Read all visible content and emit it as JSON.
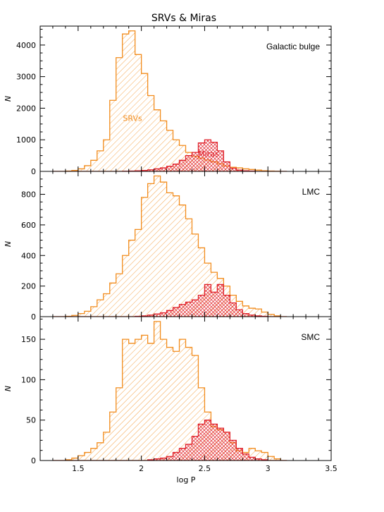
{
  "chart_data": {
    "type": "histogram",
    "title": "SRVs & Miras",
    "xlabel": "log P",
    "xlim": [
      1.2,
      3.5
    ],
    "bin_width": 0.05,
    "bins_start": 1.3,
    "x_ticks": [
      1.5,
      2,
      2.5,
      3,
      3.5
    ],
    "x_tick_labels": [
      "1.5",
      "2",
      "2.5",
      "3",
      "3.5"
    ],
    "panels": [
      {
        "label": "Galactic bulge",
        "ylabel": "N",
        "ylim": [
          0,
          4600
        ],
        "y_ticks": [
          0,
          1000,
          2000,
          3000,
          4000
        ],
        "y_tick_labels": [
          "0",
          "1000",
          "2000",
          "3000",
          "4000"
        ],
        "series": [
          {
            "name": "SRVs",
            "color": "#f28c1c",
            "hatch": "single",
            "values": [
              0,
              0,
              10,
              30,
              80,
              180,
              350,
              650,
              1000,
              2250,
              3600,
              4350,
              4450,
              3700,
              3100,
              2400,
              1950,
              1600,
              1300,
              1000,
              820,
              600,
              480,
              420,
              360,
              300,
              240,
              170,
              130,
              110,
              80,
              60,
              40,
              20,
              10,
              5,
              0
            ]
          },
          {
            "name": "Miras",
            "color": "#e0202a",
            "hatch": "cross",
            "values": [
              0,
              0,
              0,
              0,
              0,
              0,
              0,
              0,
              0,
              0,
              0,
              5,
              10,
              20,
              30,
              50,
              80,
              110,
              160,
              230,
              350,
              500,
              600,
              900,
              1000,
              920,
              650,
              300,
              100,
              40,
              20,
              10,
              0,
              0,
              0,
              0,
              0
            ]
          }
        ],
        "annotations": [
          {
            "text": "SRVs",
            "x": 1.93,
            "y": 1600,
            "color": "#f28c1c"
          },
          {
            "text": "Miras",
            "x": 2.53,
            "y": 470,
            "color": "#e0202a"
          }
        ]
      },
      {
        "label": "LMC",
        "ylabel": "N",
        "ylim": [
          0,
          950
        ],
        "y_ticks": [
          0,
          200,
          400,
          600,
          800
        ],
        "y_tick_labels": [
          "0",
          "200",
          "400",
          "600",
          "800"
        ],
        "series": [
          {
            "name": "SRVs",
            "color": "#f28c1c",
            "hatch": "single",
            "values": [
              0,
              0,
              2,
              8,
              20,
              35,
              65,
              110,
              150,
              220,
              280,
              400,
              500,
              570,
              780,
              870,
              920,
              880,
              810,
              790,
              730,
              640,
              540,
              450,
              350,
              290,
              250,
              200,
              140,
              100,
              70,
              55,
              50,
              30,
              15,
              5,
              0
            ]
          },
          {
            "name": "Miras",
            "color": "#e0202a",
            "hatch": "cross",
            "values": [
              0,
              0,
              0,
              0,
              0,
              0,
              0,
              0,
              0,
              0,
              0,
              0,
              0,
              2,
              5,
              10,
              18,
              25,
              40,
              60,
              80,
              95,
              110,
              140,
              210,
              160,
              210,
              140,
              90,
              45,
              20,
              10,
              5,
              2,
              0,
              0,
              0
            ]
          }
        ],
        "annotations": []
      },
      {
        "label": "SMC",
        "ylabel": "N",
        "ylim": [
          0,
          178
        ],
        "y_ticks": [
          0,
          50,
          100,
          150
        ],
        "y_tick_labels": [
          "0",
          "50",
          "100",
          "150"
        ],
        "series": [
          {
            "name": "SRVs",
            "color": "#f28c1c",
            "hatch": "single",
            "values": [
              0,
              0,
              1,
              3,
              6,
              10,
              15,
              22,
              35,
              60,
              90,
              150,
              145,
              150,
              155,
              145,
              172,
              150,
              140,
              135,
              150,
              140,
              130,
              90,
              60,
              42,
              38,
              35,
              22,
              12,
              10,
              15,
              12,
              10,
              5,
              2,
              0
            ]
          },
          {
            "name": "Miras",
            "color": "#e0202a",
            "hatch": "cross",
            "values": [
              0,
              0,
              0,
              0,
              0,
              0,
              0,
              0,
              0,
              0,
              0,
              0,
              0,
              0,
              0,
              1,
              2,
              3,
              5,
              10,
              15,
              20,
              30,
              45,
              50,
              45,
              40,
              35,
              25,
              15,
              8,
              4,
              2,
              1,
              0,
              0,
              0
            ]
          }
        ],
        "annotations": []
      }
    ]
  }
}
